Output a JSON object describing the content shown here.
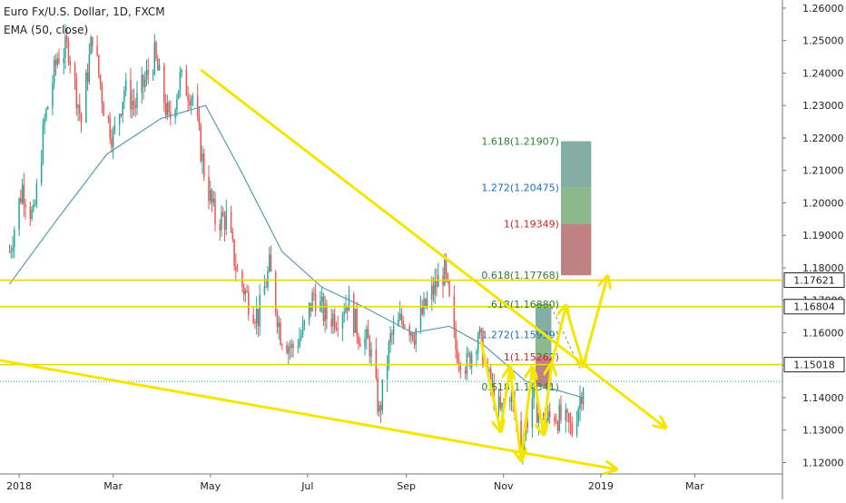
{
  "header": {
    "symbol": "Euro Fx/U.S. Dollar, 1D, FXCM",
    "indicator": "EMA (50, close)"
  },
  "colors": {
    "up": "#26a69a",
    "down": "#ef5350",
    "ema": "#5b9bb5",
    "trend": "#f5e600",
    "level_line": "#e6d800",
    "label_bg": "#ffffff"
  },
  "chart_data": {
    "type": "candlestick",
    "y_range": [
      1.1165,
      1.2625
    ],
    "x_range": [
      "2017-12-20",
      "2019-04-25"
    ],
    "y_ticks": [
      "1.26000",
      "1.25000",
      "1.24000",
      "1.23000",
      "1.22000",
      "1.21000",
      "1.20000",
      "1.19000",
      "1.18000",
      "1.17000",
      "1.16000",
      "1.15000",
      "1.14000",
      "1.13000",
      "1.12000"
    ],
    "x_ticks": [
      {
        "label": "2018",
        "date": "2018-01-01"
      },
      {
        "label": "Mar",
        "date": "2018-03-01"
      },
      {
        "label": "May",
        "date": "2018-05-01"
      },
      {
        "label": "Jul",
        "date": "2018-07-01"
      },
      {
        "label": "Sep",
        "date": "2018-09-01"
      },
      {
        "label": "Nov",
        "date": "2018-11-01"
      },
      {
        "label": "2019",
        "date": "2019-01-01"
      },
      {
        "label": "Mar",
        "date": "2019-03-01"
      }
    ],
    "price_path": [
      [
        "2017-12-26",
        1.185
      ],
      [
        "2018-01-03",
        1.205
      ],
      [
        "2018-01-10",
        1.195
      ],
      [
        "2018-01-17",
        1.225
      ],
      [
        "2018-01-25",
        1.245
      ],
      [
        "2018-02-01",
        1.248
      ],
      [
        "2018-02-09",
        1.225
      ],
      [
        "2018-02-16",
        1.252
      ],
      [
        "2018-02-23",
        1.23
      ],
      [
        "2018-03-01",
        1.22
      ],
      [
        "2018-03-08",
        1.235
      ],
      [
        "2018-03-15",
        1.23
      ],
      [
        "2018-03-27",
        1.245
      ],
      [
        "2018-04-05",
        1.225
      ],
      [
        "2018-04-12",
        1.238
      ],
      [
        "2018-04-20",
        1.233
      ],
      [
        "2018-04-27",
        1.21
      ],
      [
        "2018-05-04",
        1.195
      ],
      [
        "2018-05-11",
        1.195
      ],
      [
        "2018-05-18",
        1.178
      ],
      [
        "2018-05-25",
        1.17
      ],
      [
        "2018-05-31",
        1.165
      ],
      [
        "2018-06-07",
        1.18
      ],
      [
        "2018-06-14",
        1.16
      ],
      [
        "2018-06-21",
        1.155
      ],
      [
        "2018-06-28",
        1.16
      ],
      [
        "2018-07-05",
        1.172
      ],
      [
        "2018-07-12",
        1.165
      ],
      [
        "2018-07-19",
        1.165
      ],
      [
        "2018-07-26",
        1.17
      ],
      [
        "2018-08-02",
        1.16
      ],
      [
        "2018-08-09",
        1.156
      ],
      [
        "2018-08-15",
        1.135
      ],
      [
        "2018-08-22",
        1.158
      ],
      [
        "2018-08-30",
        1.165
      ],
      [
        "2018-09-06",
        1.16
      ],
      [
        "2018-09-13",
        1.168
      ],
      [
        "2018-09-20",
        1.175
      ],
      [
        "2018-09-25",
        1.179
      ],
      [
        "2018-10-02",
        1.155
      ],
      [
        "2018-10-09",
        1.15
      ],
      [
        "2018-10-16",
        1.16
      ],
      [
        "2018-10-23",
        1.145
      ],
      [
        "2018-10-30",
        1.135
      ],
      [
        "2018-11-05",
        1.142
      ],
      [
        "2018-11-12",
        1.125
      ],
      [
        "2018-11-19",
        1.14
      ],
      [
        "2018-11-26",
        1.132
      ],
      [
        "2018-12-03",
        1.135
      ],
      [
        "2018-12-10",
        1.132
      ],
      [
        "2018-12-14",
        1.13
      ],
      [
        "2018-12-19",
        1.14
      ],
      [
        "2018-12-21",
        1.145
      ]
    ],
    "ema_path": [
      [
        "2017-12-26",
        1.175
      ],
      [
        "2018-01-25",
        1.195
      ],
      [
        "2018-02-25",
        1.215
      ],
      [
        "2018-03-31",
        1.226
      ],
      [
        "2018-04-28",
        1.23
      ],
      [
        "2018-05-20",
        1.21
      ],
      [
        "2018-06-15",
        1.185
      ],
      [
        "2018-07-10",
        1.174
      ],
      [
        "2018-08-05",
        1.168
      ],
      [
        "2018-09-05",
        1.16
      ],
      [
        "2018-09-28",
        1.162
      ],
      [
        "2018-10-20",
        1.156
      ],
      [
        "2018-11-15",
        1.145
      ],
      [
        "2018-12-21",
        1.14
      ]
    ],
    "horizontal_levels": [
      {
        "value": 1.17621,
        "label": "1.17621"
      },
      {
        "value": 1.16804,
        "label": "1.16804"
      },
      {
        "value": 1.15018,
        "label": "1.15018"
      }
    ],
    "current_price": 1.145,
    "fib_labels": [
      {
        "text": "1.618(1.21907)",
        "value": 1.219,
        "color": "#2e7d32"
      },
      {
        "text": "1.272(1.20475)",
        "value": 1.2048,
        "color": "#1e6fb8"
      },
      {
        "text": "1(1.19349)",
        "value": 1.1935,
        "color": "#c62828"
      },
      {
        "text": "0.618(1.17768)",
        "value": 1.1777,
        "color": "#2e7d32"
      },
      {
        "text": ".618(1.16880)",
        "value": 1.1688,
        "color": "#2e7d32"
      },
      {
        "text": "1.272(1.15939)",
        "value": 1.1594,
        "color": "#1e6fb8"
      },
      {
        "text": "1(1.15262)",
        "value": 1.1526,
        "color": "#c62828"
      },
      {
        "text": "0.618(1.14341)",
        "value": 1.1434,
        "color": "#2e7d32"
      }
    ],
    "fib_zones": [
      {
        "start": "2018-12-07",
        "end": "2018-12-26",
        "from": 1.219,
        "to": 1.2048,
        "color": "#1f6b5a",
        "opacity": 0.55
      },
      {
        "start": "2018-12-07",
        "end": "2018-12-26",
        "from": 1.2048,
        "to": 1.1935,
        "color": "#2e7d32",
        "opacity": 0.55
      },
      {
        "start": "2018-12-07",
        "end": "2018-12-26",
        "from": 1.1935,
        "to": 1.1777,
        "color": "#8b1a1a",
        "opacity": 0.55
      },
      {
        "start": "2018-11-21",
        "end": "2018-12-01",
        "from": 1.1688,
        "to": 1.1594,
        "color": "#1f6b5a",
        "opacity": 0.55
      },
      {
        "start": "2018-11-21",
        "end": "2018-12-01",
        "from": 1.1594,
        "to": 1.1526,
        "color": "#2e7d32",
        "opacity": 0.55
      },
      {
        "start": "2018-11-21",
        "end": "2018-12-01",
        "from": 1.1526,
        "to": 1.1434,
        "color": "#8b1a1a",
        "opacity": 0.55
      }
    ],
    "trend_lines": [
      {
        "from": [
          "2018-04-25",
          1.241
        ],
        "to": [
          "2019-02-10",
          1.131
        ],
        "arrow": true
      },
      {
        "from": [
          "2017-12-20",
          1.1515
        ],
        "to": [
          "2019-01-10",
          1.118
        ],
        "arrow": true
      }
    ],
    "arrow_paths": [
      [
        [
          "2018-10-18",
          1.157
        ],
        [
          "2018-10-30",
          1.13
        ],
        [
          "2018-11-05",
          1.149
        ],
        [
          "2018-11-12",
          1.121
        ],
        [
          "2018-11-19",
          1.149
        ],
        [
          "2018-11-26",
          1.129
        ],
        [
          "2018-12-01",
          1.15
        ],
        [
          "2018-12-10",
          1.168
        ]
      ],
      [
        [
          "2018-12-10",
          1.168
        ],
        [
          "2018-12-21",
          1.15
        ],
        [
          "2019-01-05",
          1.177
        ]
      ]
    ],
    "dashed_projection": [
      [
        "2018-12-01",
        1.168
      ],
      [
        "2018-12-19",
        1.149
      ]
    ]
  }
}
